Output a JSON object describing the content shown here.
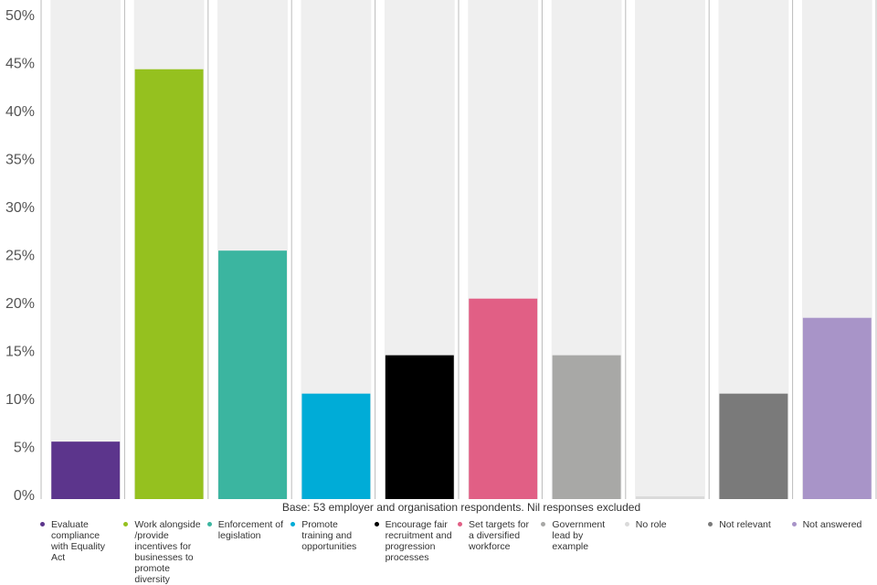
{
  "chart_data": {
    "type": "bar",
    "categories": [
      "Evaluate compliance with Equality Act",
      "Work alongside /provide incentives for businesses to promote diversity",
      "Enforcement of legislation",
      "Promote training and opportunities",
      "Encourage fair recruitment and progression processes",
      "Set targets for a diversified workforce",
      "Government lead by example",
      "No role",
      "Not relevant",
      "Not answered"
    ],
    "values": [
      5.7,
      44.5,
      25.6,
      10.7,
      14.7,
      20.6,
      14.7,
      0,
      10.7,
      18.6
    ],
    "colors": [
      "#5c358c",
      "#95c11f",
      "#3bb5a0",
      "#00acd7",
      "#000000",
      "#e15f85",
      "#a8a8a6",
      "#dadada",
      "#7a7a7a",
      "#a894c8"
    ],
    "ylim": [
      0,
      50
    ],
    "yticks": [
      {
        "value": 0,
        "label": "0%"
      },
      {
        "value": 5,
        "label": "5%"
      },
      {
        "value": 10,
        "label": "10%"
      },
      {
        "value": 15,
        "label": "15%"
      },
      {
        "value": 20,
        "label": "20%"
      },
      {
        "value": 25,
        "label": "25%"
      },
      {
        "value": 30,
        "label": "30%"
      },
      {
        "value": 35,
        "label": "35%"
      },
      {
        "value": 40,
        "label": "40%"
      },
      {
        "value": 45,
        "label": "45%"
      },
      {
        "value": 50,
        "label": "50%"
      }
    ],
    "note": "Base: 53 employer and organisation respondents. Nil responses excluded"
  }
}
